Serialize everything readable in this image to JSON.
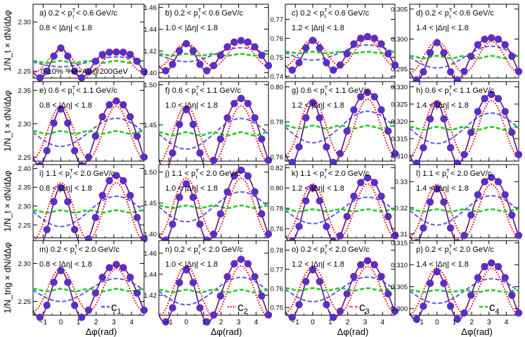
{
  "figure": {
    "system_label": "0-10% ³He+Au@200GeV",
    "xlabel": "Δφ(rad)",
    "row_ylabels": [
      "1/N_t × dN/dΔφ",
      "1/N_t × dN/dΔφ",
      "1/N_t × dN/dΔφ",
      "1/N_trig × dN/dΔφ"
    ],
    "x_ticks": [
      "−1",
      "0",
      "1",
      "2",
      "3",
      "4"
    ],
    "legend": [
      {
        "key": "c1",
        "label": "c",
        "sub": "1",
        "color": "#5a5ae6",
        "style": "dashed"
      },
      {
        "key": "c2",
        "label": "c",
        "sub": "2",
        "color": "#e60000",
        "style": "dotted"
      },
      {
        "key": "c3",
        "label": "c",
        "sub": "3",
        "color": "#ff55aa",
        "style": "dashed"
      },
      {
        "key": "c4",
        "label": "c",
        "sub": "4",
        "color": "#22cc22",
        "style": "dashed"
      }
    ],
    "colors": {
      "marker_fill": "#3b3bd6",
      "marker_edge": "#a0148c",
      "fit": "#5a0f7a",
      "c1": "#5a5ae6",
      "c2": "#e60000",
      "c4": "#22cc22"
    }
  },
  "chart_data": {
    "type": "scatter",
    "x": [
      -1.178,
      -0.785,
      -0.393,
      0.0,
      0.393,
      0.785,
      1.178,
      1.571,
      1.963,
      2.356,
      2.749,
      3.142,
      3.534,
      3.927,
      4.32,
      4.712
    ],
    "xlim": [
      -1.571,
      4.712
    ],
    "series_names": [
      "data",
      "fit",
      "c1",
      "c2",
      "c3",
      "c4"
    ],
    "panels": [
      {
        "label": "a) 0.2 < p",
        "sup": "T",
        "sub": "t",
        "label_tail": " < 0.6 GeV/c",
        "deta": "0.8 < |Δη| < 1.8",
        "ylim": [
          2.243,
          2.318
        ],
        "yticks": [
          "2.25",
          "2.30"
        ],
        "yvals": [
          2.25,
          2.3
        ],
        "params": {
          "b": 2.2595,
          "a1": -0.0025,
          "a2": 0.0055,
          "a3": 0.0035,
          "a4": 0.0005
        }
      },
      {
        "label": "b) 0.2 < p",
        "sup": "T",
        "sub": "t",
        "label_tail": " < 0.6 GeV/c",
        "deta": "1.0 < |Δη| < 1.8",
        "ylim": [
          1.395,
          1.463
        ],
        "yticks": [
          "1.40",
          "1.42",
          "1.44",
          "1.46"
        ],
        "yvals": [
          1.4,
          1.42,
          1.44,
          1.46
        ],
        "params": {
          "b": 1.4165,
          "a1": -0.0032,
          "a2": 0.0054,
          "a3": 0.0025,
          "a4": 0.0004
        }
      },
      {
        "label": "c) 0.2 < p",
        "sup": "T",
        "sub": "t",
        "label_tail": " < 0.6 GeV/c",
        "deta": "1.2 < |Δη| < 1.8",
        "ylim": [
          0.739,
          0.778
        ],
        "yticks": [
          "0.74",
          "0.75",
          "0.76",
          "0.77"
        ],
        "yvals": [
          0.74,
          0.75,
          0.76,
          0.77
        ],
        "params": {
          "b": 0.7525,
          "a1": -0.002,
          "a2": 0.0035,
          "a3": 0.0015,
          "a4": 0.0002
        }
      },
      {
        "label": "d) 0.2 < p",
        "sup": "T",
        "sub": "t",
        "label_tail": " < 0.6 GeV/c",
        "deta": "1.4 < |Δη| < 1.8",
        "ylim": [
          0.2935,
          0.3058
        ],
        "yticks": [
          "0.295",
          "0.300",
          "0.305"
        ],
        "yvals": [
          0.295,
          0.3,
          0.305
        ],
        "params": {
          "b": 0.297,
          "a1": -0.0009,
          "a2": 0.0013,
          "a3": 0.0007,
          "a4": 0.0001
        }
      },
      {
        "label": "e) 0.6 < p",
        "sup": "T",
        "sub": "t",
        "label_tail": " < 1.1 GeV/c",
        "deta": "0.8 < |Δη| < 1.8",
        "ylim": [
          2.244,
          2.363
        ],
        "yticks": [
          "2.25",
          "2.30",
          "2.35"
        ],
        "yvals": [
          2.25,
          2.3,
          2.35
        ],
        "params": {
          "b": 2.287,
          "a1": -0.0105,
          "a2": 0.0195,
          "a3": 0.0075,
          "a4": 0.001
        }
      },
      {
        "label": "f) 0.6 < p",
        "sup": "T",
        "sub": "t",
        "label_tail": " < 1.1 GeV/c",
        "deta": "1.0 < |Δη| < 1.8",
        "ylim": [
          1.405,
          1.504
        ],
        "yticks": [
          "1.45",
          "1.50"
        ],
        "yvals": [
          1.45,
          1.5
        ],
        "params": {
          "b": 1.439,
          "a1": -0.0095,
          "a2": 0.0175,
          "a3": 0.006,
          "a4": 0.001
        }
      },
      {
        "label": "g) 0.6 < p",
        "sup": "T",
        "sub": "t",
        "label_tail": " < 1.1 GeV/c",
        "deta": "1.2 < |Δη| < 1.8",
        "ylim": [
          0.7575,
          0.803
        ],
        "yticks": [
          "0.76",
          "0.78",
          "0.80"
        ],
        "yvals": [
          0.76,
          0.78,
          0.8
        ],
        "params": {
          "b": 0.777,
          "a1": -0.0045,
          "a2": 0.008,
          "a3": 0.003,
          "a4": 0.0004
        }
      },
      {
        "label": "h) 0.6 < p",
        "sup": "T",
        "sub": "t",
        "label_tail": " < 1.1 GeV/c",
        "deta": "1.4 < |Δη| < 1.8",
        "ylim": [
          0.3085,
          0.3315
        ],
        "yticks": [
          "0.310",
          "0.315",
          "0.320",
          "0.325",
          "0.330"
        ],
        "yvals": [
          0.31,
          0.315,
          0.32,
          0.325,
          0.33
        ],
        "params": {
          "b": 0.318,
          "a1": -0.0022,
          "a2": 0.004,
          "a3": 0.0015,
          "a4": 0.0002
        }
      },
      {
        "label": "i) 1.1 < p",
        "sup": "T",
        "sub": "t",
        "label_tail": " < 2.0 GeV/c",
        "deta": "0.8 < |Δη| < 1.8",
        "ylim": [
          2.216,
          2.41
        ],
        "yticks": [
          "2.25",
          "2.30",
          "2.35",
          "2.40"
        ],
        "yvals": [
          2.25,
          2.3,
          2.35,
          2.4
        ],
        "params": {
          "b": 2.286,
          "a1": -0.02,
          "a2": 0.038,
          "a3": 0.012,
          "a4": 0.0015
        }
      },
      {
        "label": "j) 1.1 < p",
        "sup": "T",
        "sub": "t",
        "label_tail": " < 2.0 GeV/c",
        "deta": "1.0 < |Δη| < 1.8",
        "ylim": [
          1.394,
          1.512
        ],
        "yticks": [
          "1.40",
          "1.45",
          "1.50"
        ],
        "yvals": [
          1.4,
          1.45,
          1.5
        ],
        "params": {
          "b": 1.444,
          "a1": -0.012,
          "a2": 0.023,
          "a3": 0.0065,
          "a4": 0.001
        }
      },
      {
        "label": "k) 1.1 < p",
        "sup": "T",
        "sub": "t",
        "label_tail": " < 2.0 GeV/c",
        "deta": "1.2 < |Δη| < 1.8",
        "ylim": [
          0.751,
          0.823
        ],
        "yticks": [
          "0.76",
          "0.78",
          "0.80",
          "0.82"
        ],
        "yvals": [
          0.76,
          0.78,
          0.8,
          0.82
        ],
        "params": {
          "b": 0.778,
          "a1": -0.0065,
          "a2": 0.013,
          "a3": 0.004,
          "a4": 0.0005
        }
      },
      {
        "label": "l) 1.1 < p",
        "sup": "T",
        "sub": "t",
        "label_tail": " < 2.0 GeV/c",
        "deta": "1.4 < |Δη| < 1.8",
        "ylim": [
          0.3085,
          0.3365
        ],
        "yticks": [
          "0.31",
          "0.32",
          "0.33"
        ],
        "yvals": [
          0.31,
          0.32,
          0.33
        ],
        "params": {
          "b": 0.319,
          "a1": -0.0028,
          "a2": 0.005,
          "a3": 0.0017,
          "a4": 0.0002
        }
      },
      {
        "label": "m) 0.2 < p",
        "sup": "T",
        "sub": "t",
        "label_tail": " < 2.0 GeV/c",
        "deta": "0.8 < |Δη| < 1.8",
        "ylim": [
          2.232,
          2.33
        ],
        "yticks": [
          "2.25",
          "2.30"
        ],
        "yvals": [
          2.25,
          2.3
        ],
        "params": {
          "b": 2.265,
          "a1": -0.0075,
          "a2": 0.014,
          "a3": 0.0055,
          "a4": 0.0008
        }
      },
      {
        "label": "n) 0.2 < p",
        "sup": "T",
        "sub": "t",
        "label_tail": " < 2.0 GeV/c",
        "deta": "1.0 < |Δη| < 1.8",
        "ylim": [
          1.401,
          1.472
        ],
        "yticks": [
          "1.42",
          "1.44",
          "1.46"
        ],
        "yvals": [
          1.42,
          1.44,
          1.46
        ],
        "params": {
          "b": 1.424,
          "a1": -0.0065,
          "a2": 0.012,
          "a3": 0.004,
          "a4": 0.0006
        }
      },
      {
        "label": "o) 0.2 < p",
        "sup": "T",
        "sub": "t",
        "label_tail": " < 2.0 GeV/c",
        "deta": "1.2 < |Δη| < 1.8",
        "ylim": [
          0.746,
          0.785
        ],
        "yticks": [
          "0.75",
          "0.76",
          "0.77",
          "0.78"
        ],
        "yvals": [
          0.75,
          0.76,
          0.77,
          0.78
        ],
        "params": {
          "b": 0.7595,
          "a1": -0.0032,
          "a2": 0.006,
          "a3": 0.002,
          "a4": 0.0003
        }
      },
      {
        "label": "p) 0.2 < p",
        "sup": "T",
        "sub": "t",
        "label_tail": " < 2.0 GeV/c",
        "deta": "1.4 < |Δη| < 1.8",
        "ylim": [
          0.2985,
          0.3155
        ],
        "yticks": [
          "0.300",
          "0.305",
          "0.310",
          "0.315"
        ],
        "yvals": [
          0.3,
          0.305,
          0.31,
          0.315
        ],
        "params": {
          "b": 0.304,
          "a1": -0.0014,
          "a2": 0.0026,
          "a3": 0.0009,
          "a4": 0.0001
        }
      }
    ]
  }
}
